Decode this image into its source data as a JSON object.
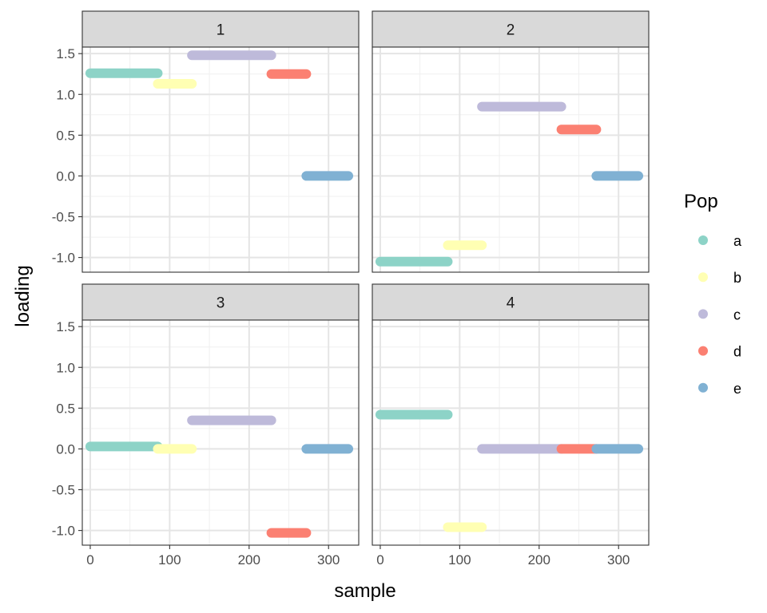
{
  "chart_data": {
    "type": "scatter",
    "xlabel": "sample",
    "ylabel": "loading",
    "xlim": [
      -10,
      338
    ],
    "ylim": [
      -1.18,
      1.58
    ],
    "xticks": [
      0,
      100,
      200,
      300
    ],
    "xtick_labels": [
      "0",
      "100",
      "200",
      "300"
    ],
    "yticks": [
      1.5,
      1.0,
      0.5,
      0.0,
      -0.5,
      -1.0
    ],
    "ytick_labels": [
      "1.5",
      "1.0",
      "0.5",
      "0.0",
      "-0.5",
      "-1.0"
    ],
    "grid": true,
    "legend": {
      "title": "Pop",
      "position": "right",
      "entries": [
        {
          "label": "a",
          "color": "#8DD3C7"
        },
        {
          "label": "b",
          "color": "#FFFFB3"
        },
        {
          "label": "c",
          "color": "#BEBADA"
        },
        {
          "label": "d",
          "color": "#FB8072"
        },
        {
          "label": "e",
          "color": "#80B1D3"
        }
      ]
    },
    "facets": [
      {
        "label": "1",
        "series": [
          {
            "name": "a",
            "x_range": [
              0,
              85
            ],
            "y": 1.26
          },
          {
            "name": "b",
            "x_range": [
              85,
              128
            ],
            "y": 1.13
          },
          {
            "name": "c",
            "x_range": [
              128,
              228
            ],
            "y": 1.48
          },
          {
            "name": "d",
            "x_range": [
              228,
              272
            ],
            "y": 1.25
          },
          {
            "name": "e",
            "x_range": [
              272,
              325
            ],
            "y": 0.0
          }
        ]
      },
      {
        "label": "2",
        "series": [
          {
            "name": "a",
            "x_range": [
              0,
              85
            ],
            "y": -1.05
          },
          {
            "name": "b",
            "x_range": [
              85,
              128
            ],
            "y": -0.85
          },
          {
            "name": "c",
            "x_range": [
              128,
              228
            ],
            "y": 0.85
          },
          {
            "name": "d",
            "x_range": [
              228,
              272
            ],
            "y": 0.57
          },
          {
            "name": "e",
            "x_range": [
              272,
              325
            ],
            "y": 0.0
          }
        ]
      },
      {
        "label": "3",
        "series": [
          {
            "name": "a",
            "x_range": [
              0,
              85
            ],
            "y": 0.03
          },
          {
            "name": "b",
            "x_range": [
              85,
              128
            ],
            "y": 0.0
          },
          {
            "name": "c",
            "x_range": [
              128,
              228
            ],
            "y": 0.35
          },
          {
            "name": "d",
            "x_range": [
              228,
              272
            ],
            "y": -1.03
          },
          {
            "name": "e",
            "x_range": [
              272,
              325
            ],
            "y": 0.0
          }
        ]
      },
      {
        "label": "4",
        "series": [
          {
            "name": "a",
            "x_range": [
              0,
              85
            ],
            "y": 0.42
          },
          {
            "name": "b",
            "x_range": [
              85,
              128
            ],
            "y": -0.96
          },
          {
            "name": "c",
            "x_range": [
              128,
              228
            ],
            "y": 0.0
          },
          {
            "name": "d",
            "x_range": [
              228,
              272
            ],
            "y": 0.0
          },
          {
            "name": "e",
            "x_range": [
              272,
              325
            ],
            "y": 0.0
          }
        ]
      }
    ]
  }
}
